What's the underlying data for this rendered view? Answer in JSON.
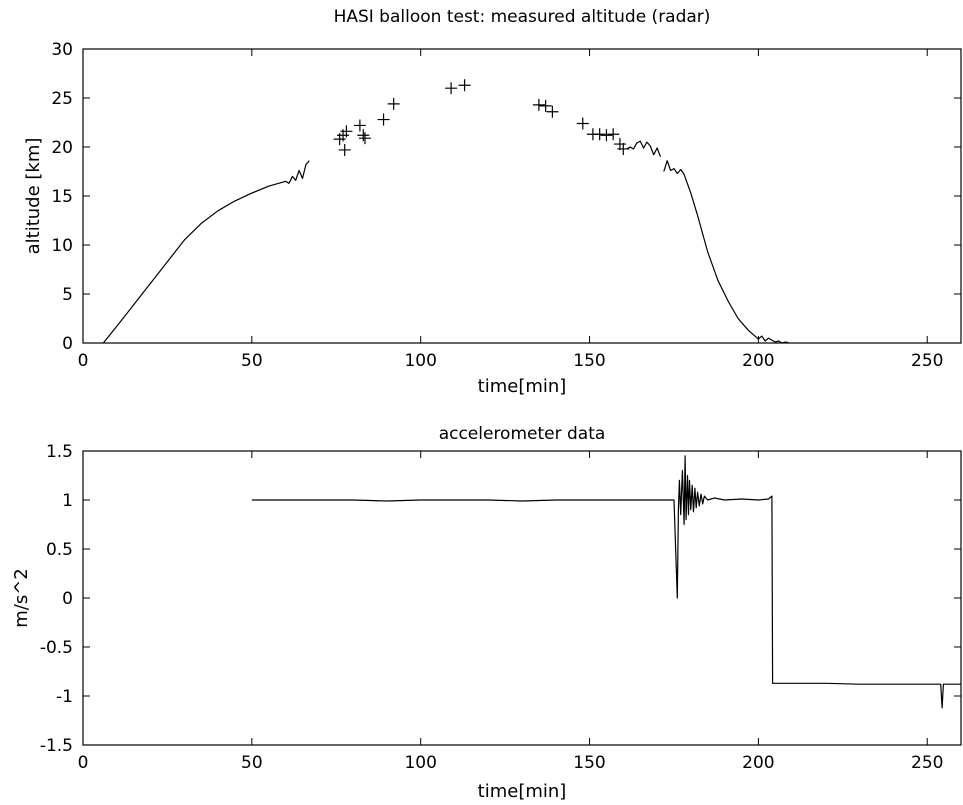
{
  "chart_data": [
    {
      "type": "line",
      "title": "HASI balloon test: measured altitude (radar)",
      "xlabel": "time[min]",
      "ylabel": "altitude [km]",
      "xlim": [
        0,
        260
      ],
      "ylim": [
        0,
        30
      ],
      "xticks": [
        0,
        50,
        100,
        150,
        200,
        250
      ],
      "yticks": [
        0,
        5,
        10,
        15,
        20,
        25,
        30
      ],
      "grid": false,
      "color": "#000000",
      "series": [
        {
          "style": "line",
          "x": [
            6,
            10,
            15,
            20,
            25,
            30,
            35,
            40,
            45,
            50,
            55,
            60,
            61,
            62,
            63,
            64,
            65,
            66,
            67
          ],
          "y": [
            0,
            1.7,
            3.9,
            6.1,
            8.3,
            10.5,
            12.2,
            13.5,
            14.5,
            15.3,
            16.0,
            16.5,
            16.3,
            17.0,
            16.6,
            17.6,
            16.8,
            18.2,
            18.6
          ]
        },
        {
          "style": "markers",
          "marker": "+",
          "x": [
            76,
            77,
            77.5,
            78,
            82,
            83,
            83.5,
            89,
            92,
            109,
            113,
            135,
            137,
            139,
            148,
            151,
            153,
            155,
            157,
            159,
            160
          ],
          "y": [
            20.8,
            21.2,
            19.7,
            21.6,
            22.2,
            21.2,
            20.9,
            22.8,
            24.4,
            26.0,
            26.3,
            24.3,
            24.2,
            23.6,
            22.4,
            21.3,
            21.3,
            21.2,
            21.3,
            20.3,
            19.8
          ]
        },
        {
          "style": "line",
          "x": [
            161,
            162,
            163,
            164,
            165,
            166,
            167,
            168,
            169,
            170,
            171
          ],
          "y": [
            19.8,
            20.0,
            19.8,
            20.4,
            20.6,
            19.9,
            20.5,
            20.1,
            19.2,
            19.9,
            19.0
          ]
        },
        {
          "style": "line",
          "x": [
            172,
            173,
            174,
            175,
            176,
            177,
            178,
            180,
            182,
            185,
            188,
            191,
            194,
            197,
            199,
            200,
            201,
            202,
            203,
            204,
            205,
            206,
            207,
            208,
            209
          ],
          "y": [
            17.5,
            18.6,
            17.6,
            17.8,
            17.3,
            17.7,
            17.2,
            15.3,
            13.0,
            9.3,
            6.4,
            4.3,
            2.5,
            1.3,
            0.7,
            0.4,
            0.7,
            0.2,
            0.5,
            0.3,
            0.1,
            0.2,
            0.0,
            0.1,
            0.0
          ]
        }
      ]
    },
    {
      "type": "line",
      "title": "accelerometer data",
      "xlabel": "time[min]",
      "ylabel": "m/s^2",
      "xlim": [
        0,
        260
      ],
      "ylim": [
        -1.5,
        1.5
      ],
      "xticks": [
        0,
        50,
        100,
        150,
        200,
        250
      ],
      "yticks": [
        -1.5,
        -1,
        -0.5,
        0,
        0.5,
        1,
        1.5
      ],
      "ytick_labels": [
        "-1.5",
        "-1",
        "-0.5",
        "0",
        "0.5",
        "1",
        "1.5"
      ],
      "grid": false,
      "color": "#000000",
      "series": [
        {
          "style": "line",
          "x": [
            50,
            60,
            70,
            80,
            90,
            100,
            110,
            120,
            130,
            140,
            150,
            160,
            170,
            175,
            176,
            176.3,
            176.6,
            177,
            177.5,
            178,
            178.3,
            178.6,
            179,
            179.3,
            179.6,
            180,
            180.4,
            180.8,
            181.2,
            181.6,
            182,
            182.5,
            183,
            183.5,
            184,
            185,
            187,
            190,
            195,
            200,
            203,
            204,
            204.2,
            204.5,
            210,
            220,
            230,
            240,
            250,
            254,
            254.4,
            254.8,
            260
          ],
          "y": [
            1.0,
            1.0,
            1.0,
            1.0,
            0.99,
            1.0,
            1.0,
            1.0,
            0.99,
            1.0,
            1.0,
            1.0,
            1.0,
            1.0,
            0.0,
            0.9,
            1.2,
            0.85,
            1.3,
            0.75,
            1.45,
            0.8,
            1.25,
            0.85,
            1.2,
            0.9,
            1.15,
            0.88,
            1.12,
            0.92,
            1.08,
            0.94,
            1.06,
            0.96,
            1.04,
            1.0,
            1.02,
            1.0,
            1.01,
            1.0,
            1.01,
            1.04,
            -0.87,
            -0.87,
            -0.87,
            -0.87,
            -0.88,
            -0.88,
            -0.88,
            -0.88,
            -1.12,
            -0.88,
            -0.88
          ]
        }
      ]
    }
  ]
}
